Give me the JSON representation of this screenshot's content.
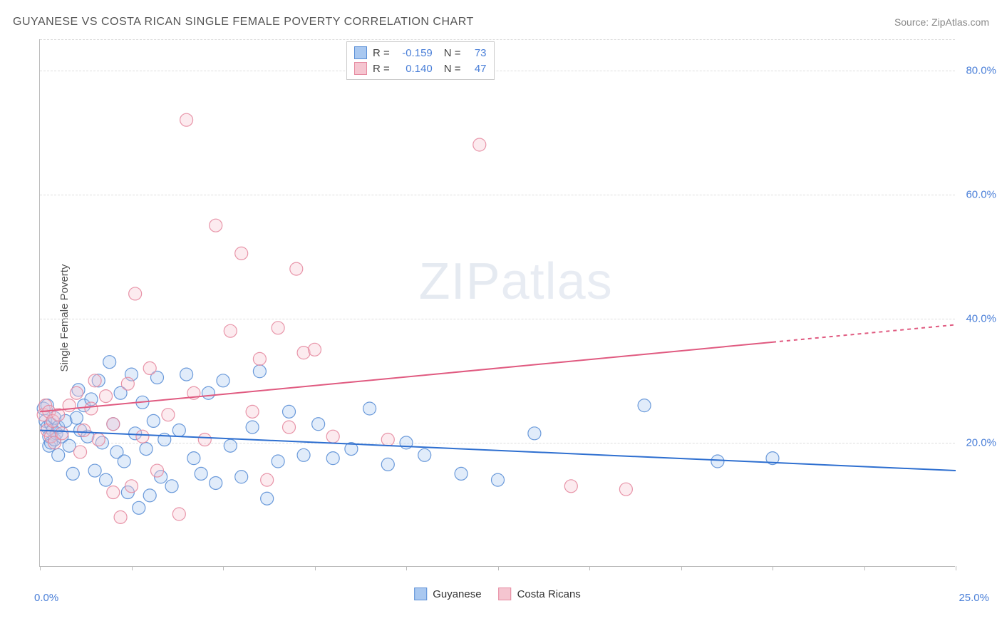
{
  "title": "GUYANESE VS COSTA RICAN SINGLE FEMALE POVERTY CORRELATION CHART",
  "source_prefix": "Source: ",
  "source_name": "ZipAtlas.com",
  "y_axis_label": "Single Female Poverty",
  "watermark_zip": "ZIP",
  "watermark_atlas": "atlas",
  "chart": {
    "type": "scatter",
    "x_domain": [
      0,
      25
    ],
    "y_domain": [
      0,
      85
    ],
    "background_color": "#ffffff",
    "grid_color": "#dddddd",
    "axis_color": "#bbbbbb",
    "tick_color": "#4a7fd8",
    "y_gridlines": [
      20,
      40,
      60,
      80,
      85
    ],
    "y_tick_labels": [
      {
        "v": 20,
        "label": "20.0%"
      },
      {
        "v": 40,
        "label": "40.0%"
      },
      {
        "v": 60,
        "label": "60.0%"
      },
      {
        "v": 80,
        "label": "80.0%"
      }
    ],
    "x_ticks": [
      0,
      2.5,
      5,
      7.5,
      10,
      12.5,
      15,
      17.5,
      20,
      22.5,
      25
    ],
    "x_min_label": "0.0%",
    "x_max_label": "25.0%",
    "marker_radius": 9,
    "marker_fill_opacity": 0.35,
    "marker_stroke_opacity": 0.9,
    "line_width": 2,
    "series": [
      {
        "name": "Guyanese",
        "color_fill": "#a9c8f0",
        "color_stroke": "#5b8fd6",
        "color_line": "#2e6fd0",
        "R": "-0.159",
        "N": "73",
        "trend": {
          "x1": 0,
          "y1": 22.0,
          "x2": 25,
          "y2": 15.5,
          "dash_from": 25
        },
        "points": [
          [
            0.1,
            25.5
          ],
          [
            0.15,
            23.5
          ],
          [
            0.2,
            26.0
          ],
          [
            0.2,
            22.5
          ],
          [
            0.25,
            21.0
          ],
          [
            0.25,
            19.5
          ],
          [
            0.3,
            23.0
          ],
          [
            0.3,
            20.0
          ],
          [
            0.35,
            22.0
          ],
          [
            0.4,
            20.5
          ],
          [
            0.4,
            24.0
          ],
          [
            0.45,
            21.5
          ],
          [
            0.5,
            22.5
          ],
          [
            0.6,
            21.0
          ],
          [
            0.7,
            23.5
          ],
          [
            0.8,
            19.5
          ],
          [
            0.9,
            15.0
          ],
          [
            1.0,
            24.0
          ],
          [
            1.1,
            22.0
          ],
          [
            1.2,
            26.0
          ],
          [
            1.3,
            21.0
          ],
          [
            1.4,
            27.0
          ],
          [
            1.5,
            15.5
          ],
          [
            1.6,
            30.0
          ],
          [
            1.7,
            20.0
          ],
          [
            1.8,
            14.0
          ],
          [
            1.9,
            33.0
          ],
          [
            2.0,
            23.0
          ],
          [
            2.1,
            18.5
          ],
          [
            2.2,
            28.0
          ],
          [
            2.3,
            17.0
          ],
          [
            2.4,
            12.0
          ],
          [
            2.5,
            31.0
          ],
          [
            2.6,
            21.5
          ],
          [
            2.7,
            9.5
          ],
          [
            2.8,
            26.5
          ],
          [
            2.9,
            19.0
          ],
          [
            3.0,
            11.5
          ],
          [
            3.1,
            23.5
          ],
          [
            3.2,
            30.5
          ],
          [
            3.3,
            14.5
          ],
          [
            3.4,
            20.5
          ],
          [
            3.6,
            13.0
          ],
          [
            3.8,
            22.0
          ],
          [
            4.0,
            31.0
          ],
          [
            4.2,
            17.5
          ],
          [
            4.4,
            15.0
          ],
          [
            4.6,
            28.0
          ],
          [
            4.8,
            13.5
          ],
          [
            5.0,
            30.0
          ],
          [
            5.2,
            19.5
          ],
          [
            5.5,
            14.5
          ],
          [
            5.8,
            22.5
          ],
          [
            6.0,
            31.5
          ],
          [
            6.2,
            11.0
          ],
          [
            6.5,
            17.0
          ],
          [
            6.8,
            25.0
          ],
          [
            7.2,
            18.0
          ],
          [
            7.6,
            23.0
          ],
          [
            8.0,
            17.5
          ],
          [
            8.5,
            19.0
          ],
          [
            9.0,
            25.5
          ],
          [
            9.5,
            16.5
          ],
          [
            10.0,
            20.0
          ],
          [
            10.5,
            18.0
          ],
          [
            11.5,
            15.0
          ],
          [
            12.5,
            14.0
          ],
          [
            13.5,
            21.5
          ],
          [
            16.5,
            26.0
          ],
          [
            18.5,
            17.0
          ],
          [
            20.0,
            17.5
          ],
          [
            0.5,
            18.0
          ],
          [
            1.05,
            28.5
          ]
        ]
      },
      {
        "name": "Costa Ricans",
        "color_fill": "#f5c5d0",
        "color_stroke": "#e68aa0",
        "color_line": "#e05a80",
        "R": "0.140",
        "N": "47",
        "trend": {
          "x1": 0,
          "y1": 25.0,
          "x2": 25,
          "y2": 39.0,
          "dash_from": 20
        },
        "points": [
          [
            0.1,
            24.5
          ],
          [
            0.15,
            26.0
          ],
          [
            0.2,
            22.0
          ],
          [
            0.25,
            25.0
          ],
          [
            0.3,
            21.0
          ],
          [
            0.35,
            23.5
          ],
          [
            0.4,
            20.0
          ],
          [
            0.5,
            24.5
          ],
          [
            0.6,
            21.5
          ],
          [
            0.8,
            26.0
          ],
          [
            1.0,
            28.0
          ],
          [
            1.2,
            22.0
          ],
          [
            1.4,
            25.5
          ],
          [
            1.5,
            30.0
          ],
          [
            1.6,
            20.5
          ],
          [
            1.8,
            27.5
          ],
          [
            2.0,
            23.0
          ],
          [
            2.2,
            8.0
          ],
          [
            2.4,
            29.5
          ],
          [
            2.5,
            13.0
          ],
          [
            2.6,
            44.0
          ],
          [
            2.8,
            21.0
          ],
          [
            3.0,
            32.0
          ],
          [
            3.2,
            15.5
          ],
          [
            3.5,
            24.5
          ],
          [
            3.8,
            8.5
          ],
          [
            4.0,
            72.0
          ],
          [
            4.2,
            28.0
          ],
          [
            4.5,
            20.5
          ],
          [
            4.8,
            55.0
          ],
          [
            5.2,
            38.0
          ],
          [
            5.5,
            50.5
          ],
          [
            5.8,
            25.0
          ],
          [
            6.0,
            33.5
          ],
          [
            6.2,
            14.0
          ],
          [
            6.5,
            38.5
          ],
          [
            6.8,
            22.5
          ],
          [
            7.0,
            48.0
          ],
          [
            7.2,
            34.5
          ],
          [
            7.5,
            35.0
          ],
          [
            8.0,
            21.0
          ],
          [
            9.5,
            20.5
          ],
          [
            12.0,
            68.0
          ],
          [
            14.5,
            13.0
          ],
          [
            16.0,
            12.5
          ],
          [
            2.0,
            12.0
          ],
          [
            1.1,
            18.5
          ]
        ]
      }
    ]
  },
  "legend_top_rows": [
    {
      "swatch_series": 0,
      "R_label": "R =",
      "N_label": "N ="
    },
    {
      "swatch_series": 1,
      "R_label": "R =",
      "N_label": "N ="
    }
  ]
}
